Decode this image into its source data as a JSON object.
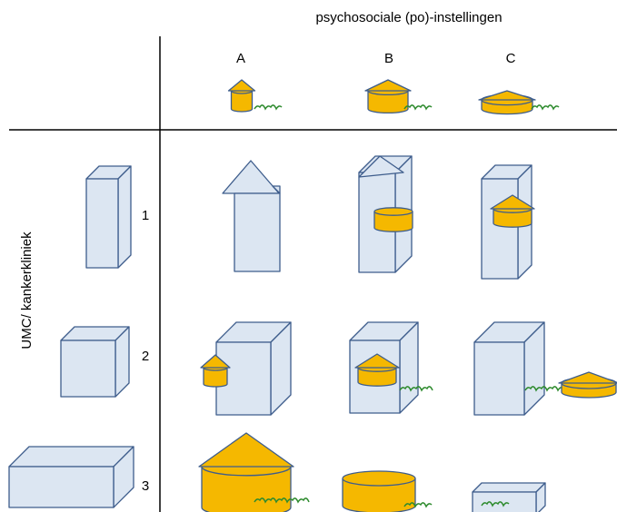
{
  "header": {
    "title": "psychosociale (po)-instellingen",
    "columns": [
      "A",
      "B",
      "C"
    ]
  },
  "side": {
    "title": "UMC/ kankerkliniek",
    "rows": [
      "1",
      "2",
      "3"
    ]
  }
}
